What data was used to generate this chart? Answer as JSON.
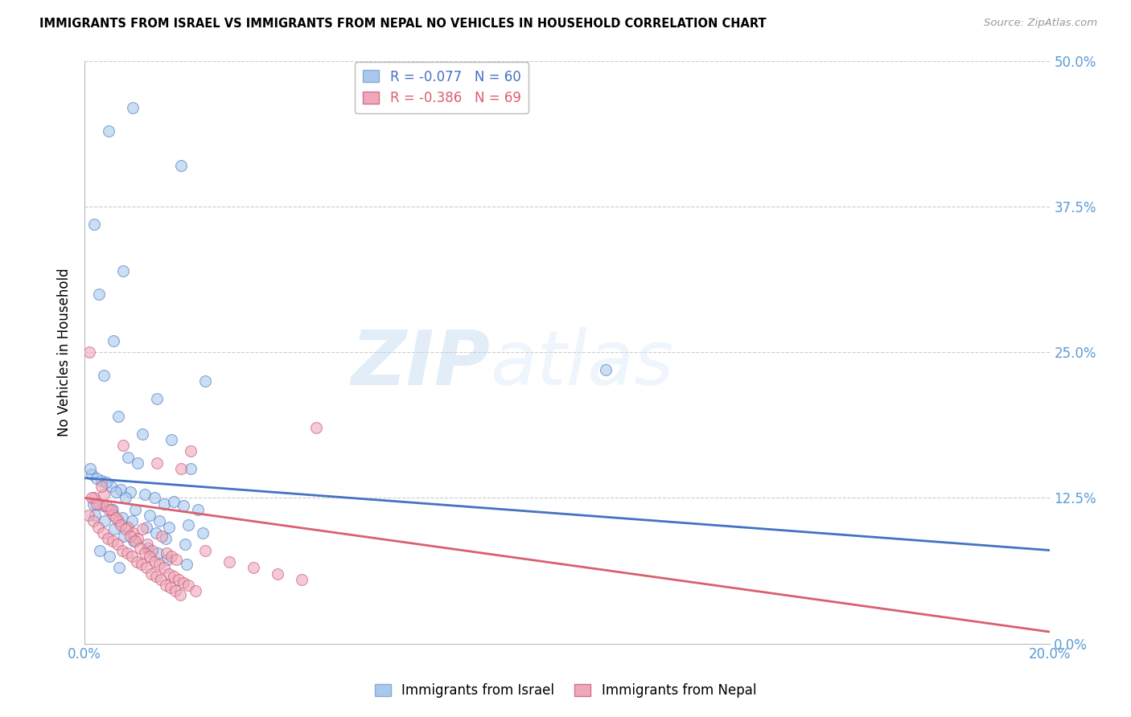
{
  "title": "IMMIGRANTS FROM ISRAEL VS IMMIGRANTS FROM NEPAL NO VEHICLES IN HOUSEHOLD CORRELATION CHART",
  "source": "Source: ZipAtlas.com",
  "ylabel": "No Vehicles in Household",
  "ytick_labels": [
    "",
    "12.5%",
    "25.0%",
    "37.5%",
    "50.0%"
  ],
  "ytick_values": [
    0.0,
    12.5,
    25.0,
    37.5,
    50.0
  ],
  "xlim": [
    0.0,
    20.0
  ],
  "ylim": [
    0.0,
    50.0
  ],
  "israel_R": -0.077,
  "israel_N": 60,
  "nepal_R": -0.386,
  "nepal_N": 69,
  "israel_color": "#A8C8ED",
  "nepal_color": "#F0A8B8",
  "israel_line_color": "#4472C4",
  "nepal_line_color": "#D96070",
  "legend_israel": "Immigrants from Israel",
  "legend_nepal": "Immigrants from Nepal",
  "background_color": "#FFFFFF",
  "grid_color": "#CCCCCC",
  "watermark_zip": "ZIP",
  "watermark_atlas": "atlas",
  "israel_x": [
    0.5,
    1.0,
    2.0,
    0.2,
    0.8,
    0.3,
    0.6,
    0.4,
    1.5,
    2.5,
    0.7,
    1.2,
    1.8,
    0.9,
    1.1,
    2.2,
    0.15,
    0.35,
    0.55,
    0.75,
    0.95,
    1.25,
    1.45,
    1.65,
    1.85,
    2.05,
    2.35,
    0.12,
    0.25,
    0.45,
    0.65,
    0.85,
    1.05,
    1.35,
    1.55,
    1.75,
    2.15,
    2.45,
    0.18,
    0.38,
    0.58,
    0.78,
    0.98,
    1.28,
    1.48,
    1.68,
    2.08,
    0.22,
    0.42,
    0.62,
    0.82,
    1.02,
    1.32,
    1.52,
    1.72,
    2.12,
    0.32,
    0.52,
    0.72,
    10.8
  ],
  "israel_y": [
    44.0,
    46.0,
    41.0,
    36.0,
    32.0,
    30.0,
    26.0,
    23.0,
    21.0,
    22.5,
    19.5,
    18.0,
    17.5,
    16.0,
    15.5,
    15.0,
    14.5,
    14.0,
    13.5,
    13.2,
    13.0,
    12.8,
    12.5,
    12.0,
    12.2,
    11.8,
    11.5,
    15.0,
    14.2,
    13.8,
    13.0,
    12.5,
    11.5,
    11.0,
    10.5,
    10.0,
    10.2,
    9.5,
    12.0,
    11.8,
    11.5,
    10.8,
    10.5,
    10.0,
    9.5,
    9.0,
    8.5,
    11.0,
    10.5,
    9.8,
    9.2,
    8.8,
    8.2,
    7.8,
    7.2,
    6.8,
    8.0,
    7.5,
    6.5,
    23.5
  ],
  "nepal_x": [
    0.1,
    0.2,
    0.3,
    0.4,
    0.5,
    0.6,
    0.7,
    0.8,
    0.9,
    1.0,
    1.1,
    1.2,
    1.3,
    1.4,
    1.5,
    1.6,
    1.7,
    1.8,
    1.9,
    2.0,
    2.2,
    2.5,
    3.0,
    3.5,
    4.0,
    4.5,
    0.15,
    0.25,
    0.35,
    0.45,
    0.55,
    0.65,
    0.75,
    0.85,
    0.95,
    1.05,
    1.15,
    1.25,
    1.35,
    1.45,
    1.55,
    1.65,
    1.75,
    1.85,
    1.95,
    2.05,
    2.15,
    2.3,
    0.08,
    0.18,
    0.28,
    0.38,
    0.48,
    0.58,
    0.68,
    0.78,
    0.88,
    0.98,
    1.08,
    1.18,
    1.28,
    1.38,
    1.48,
    1.58,
    1.68,
    1.78,
    1.88,
    1.98,
    4.8
  ],
  "nepal_y": [
    25.0,
    12.5,
    12.0,
    12.8,
    11.5,
    11.0,
    10.5,
    17.0,
    10.0,
    9.5,
    9.0,
    9.8,
    8.5,
    8.0,
    15.5,
    9.2,
    7.8,
    7.5,
    7.2,
    15.0,
    16.5,
    8.0,
    7.0,
    6.5,
    6.0,
    5.5,
    12.5,
    12.0,
    13.5,
    11.8,
    11.5,
    10.8,
    10.2,
    9.8,
    9.2,
    8.8,
    8.2,
    7.8,
    7.5,
    7.0,
    6.8,
    6.5,
    6.0,
    5.8,
    5.5,
    5.2,
    5.0,
    4.5,
    11.0,
    10.5,
    10.0,
    9.5,
    9.0,
    8.8,
    8.5,
    8.0,
    7.8,
    7.5,
    7.0,
    6.8,
    6.5,
    6.0,
    5.8,
    5.5,
    5.0,
    4.8,
    4.5,
    4.2,
    18.5
  ]
}
